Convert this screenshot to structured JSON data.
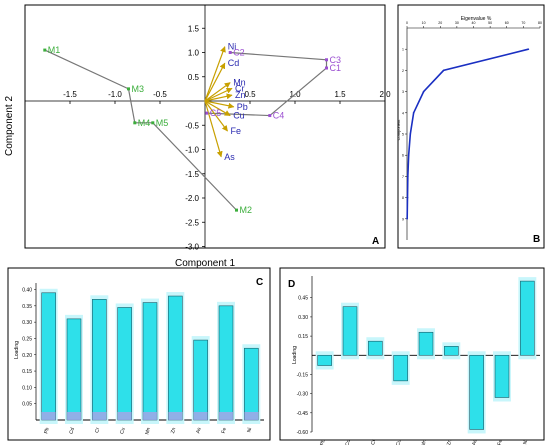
{
  "chart_data": [
    {
      "panel": "A",
      "type": "scatter",
      "xlabel": "Component 1",
      "ylabel": "Component 2",
      "xlim": [
        -2.0,
        2.0
      ],
      "ylim": [
        -3.0,
        1.5
      ],
      "xticks": [
        -1.5,
        -1.0,
        -0.5,
        0.5,
        1.0,
        1.5,
        2.0
      ],
      "yticks": [
        -3.0,
        -2.5,
        -2.0,
        -1.5,
        -1.0,
        -0.5,
        0.5,
        1.0,
        1.5
      ],
      "sites": [
        {
          "label": "M1",
          "x": -1.78,
          "y": 1.05,
          "color": "#3cae3c"
        },
        {
          "label": "M3",
          "x": -0.85,
          "y": 0.25,
          "color": "#3cae3c"
        },
        {
          "label": "M4",
          "x": -0.78,
          "y": -0.45,
          "color": "#3cae3c"
        },
        {
          "label": "M5",
          "x": -0.58,
          "y": -0.45,
          "color": "#3cae3c"
        },
        {
          "label": "M2",
          "x": 0.35,
          "y": -2.25,
          "color": "#3cae3c"
        },
        {
          "label": "C5",
          "x": 0.02,
          "y": -0.25,
          "color": "#9b4fd1"
        },
        {
          "label": "C4",
          "x": 0.72,
          "y": -0.3,
          "color": "#9b4fd1"
        },
        {
          "label": "C2",
          "x": 0.28,
          "y": 1.0,
          "color": "#9b4fd1"
        },
        {
          "label": "C3",
          "x": 1.35,
          "y": 0.85,
          "color": "#9b4fd1"
        },
        {
          "label": "C1",
          "x": 1.35,
          "y": 0.68,
          "color": "#9b4fd1"
        }
      ],
      "hulls": [
        [
          "M1",
          "M3",
          "M4",
          "M5",
          "M2"
        ],
        [
          "C5",
          "C4",
          "C1",
          "C3",
          "C2"
        ]
      ],
      "loadings": [
        {
          "label": "Ni",
          "x": 0.22,
          "y": 1.12
        },
        {
          "label": "Cd",
          "x": 0.22,
          "y": 0.78
        },
        {
          "label": "Mn",
          "x": 0.28,
          "y": 0.38
        },
        {
          "label": "Cr",
          "x": 0.3,
          "y": 0.26
        },
        {
          "label": "Zn",
          "x": 0.3,
          "y": 0.12
        },
        {
          "label": "Pb",
          "x": 0.32,
          "y": -0.12
        },
        {
          "label": "Cu",
          "x": 0.28,
          "y": -0.3
        },
        {
          "label": "Fe",
          "x": 0.25,
          "y": -0.62
        },
        {
          "label": "As",
          "x": 0.18,
          "y": -1.15
        }
      ],
      "panel_label": "A"
    },
    {
      "panel": "B",
      "type": "line",
      "title": "Eigenvalue %",
      "ylabel": "Component",
      "xlim": [
        0,
        80
      ],
      "ylim": [
        10,
        0
      ],
      "xticks": [
        0,
        10,
        20,
        30,
        40,
        50,
        60,
        70,
        80
      ],
      "yticks": [
        1,
        2,
        3,
        4,
        5,
        6,
        7,
        8,
        9
      ],
      "x": [
        73,
        22,
        10,
        4,
        2,
        1,
        0.5,
        0.3,
        0.1
      ],
      "y": [
        1,
        2,
        3,
        4,
        5,
        6,
        7,
        8,
        9
      ],
      "color": "#1a2fc2",
      "panel_label": "B"
    },
    {
      "panel": "C",
      "type": "bar",
      "ylabel": "Loading",
      "categories": [
        "Pb",
        "Cd",
        "Cr",
        "Cu",
        "Mn",
        "Zn",
        "As",
        "Fe",
        "Ni"
      ],
      "values": [
        0.39,
        0.31,
        0.37,
        0.345,
        0.36,
        0.38,
        0.245,
        0.35,
        0.22
      ],
      "ylim": [
        0,
        0.42
      ],
      "yticks": [
        0.05,
        0.1,
        0.15,
        0.2,
        0.25,
        0.3,
        0.35,
        0.4
      ],
      "ytick_labels": [
        "0.05",
        "0.10",
        "0.15",
        "0.20",
        "0.25",
        "0.30",
        "0.35",
        "0.40"
      ],
      "color": "#2ee0ea",
      "panel_label": "C"
    },
    {
      "panel": "D",
      "type": "bar",
      "ylabel": "Loading",
      "categories": [
        "Pb",
        "Cd",
        "Cr",
        "Cu",
        "Mn",
        "Zn",
        "As",
        "Fe",
        "Ni"
      ],
      "values": [
        -0.08,
        0.38,
        0.11,
        -0.2,
        0.18,
        0.07,
        -0.58,
        -0.33,
        0.58
      ],
      "ylim": [
        -0.6,
        0.62
      ],
      "yticks": [
        -0.6,
        -0.45,
        -0.3,
        -0.15,
        0.15,
        0.3,
        0.45
      ],
      "ytick_labels": [
        "-0.60",
        "-0.45",
        "-0.30",
        "-0.15",
        "0.15",
        "0.30",
        "0.45"
      ],
      "color": "#2ee0ea",
      "panel_label": "D"
    }
  ],
  "colors": {
    "arrow": "#c8a000",
    "loading_label": "#2a2ab0",
    "hull": "#777777",
    "bar_glow": "#c8f6fb",
    "bar_base": "#a9a2e6"
  }
}
